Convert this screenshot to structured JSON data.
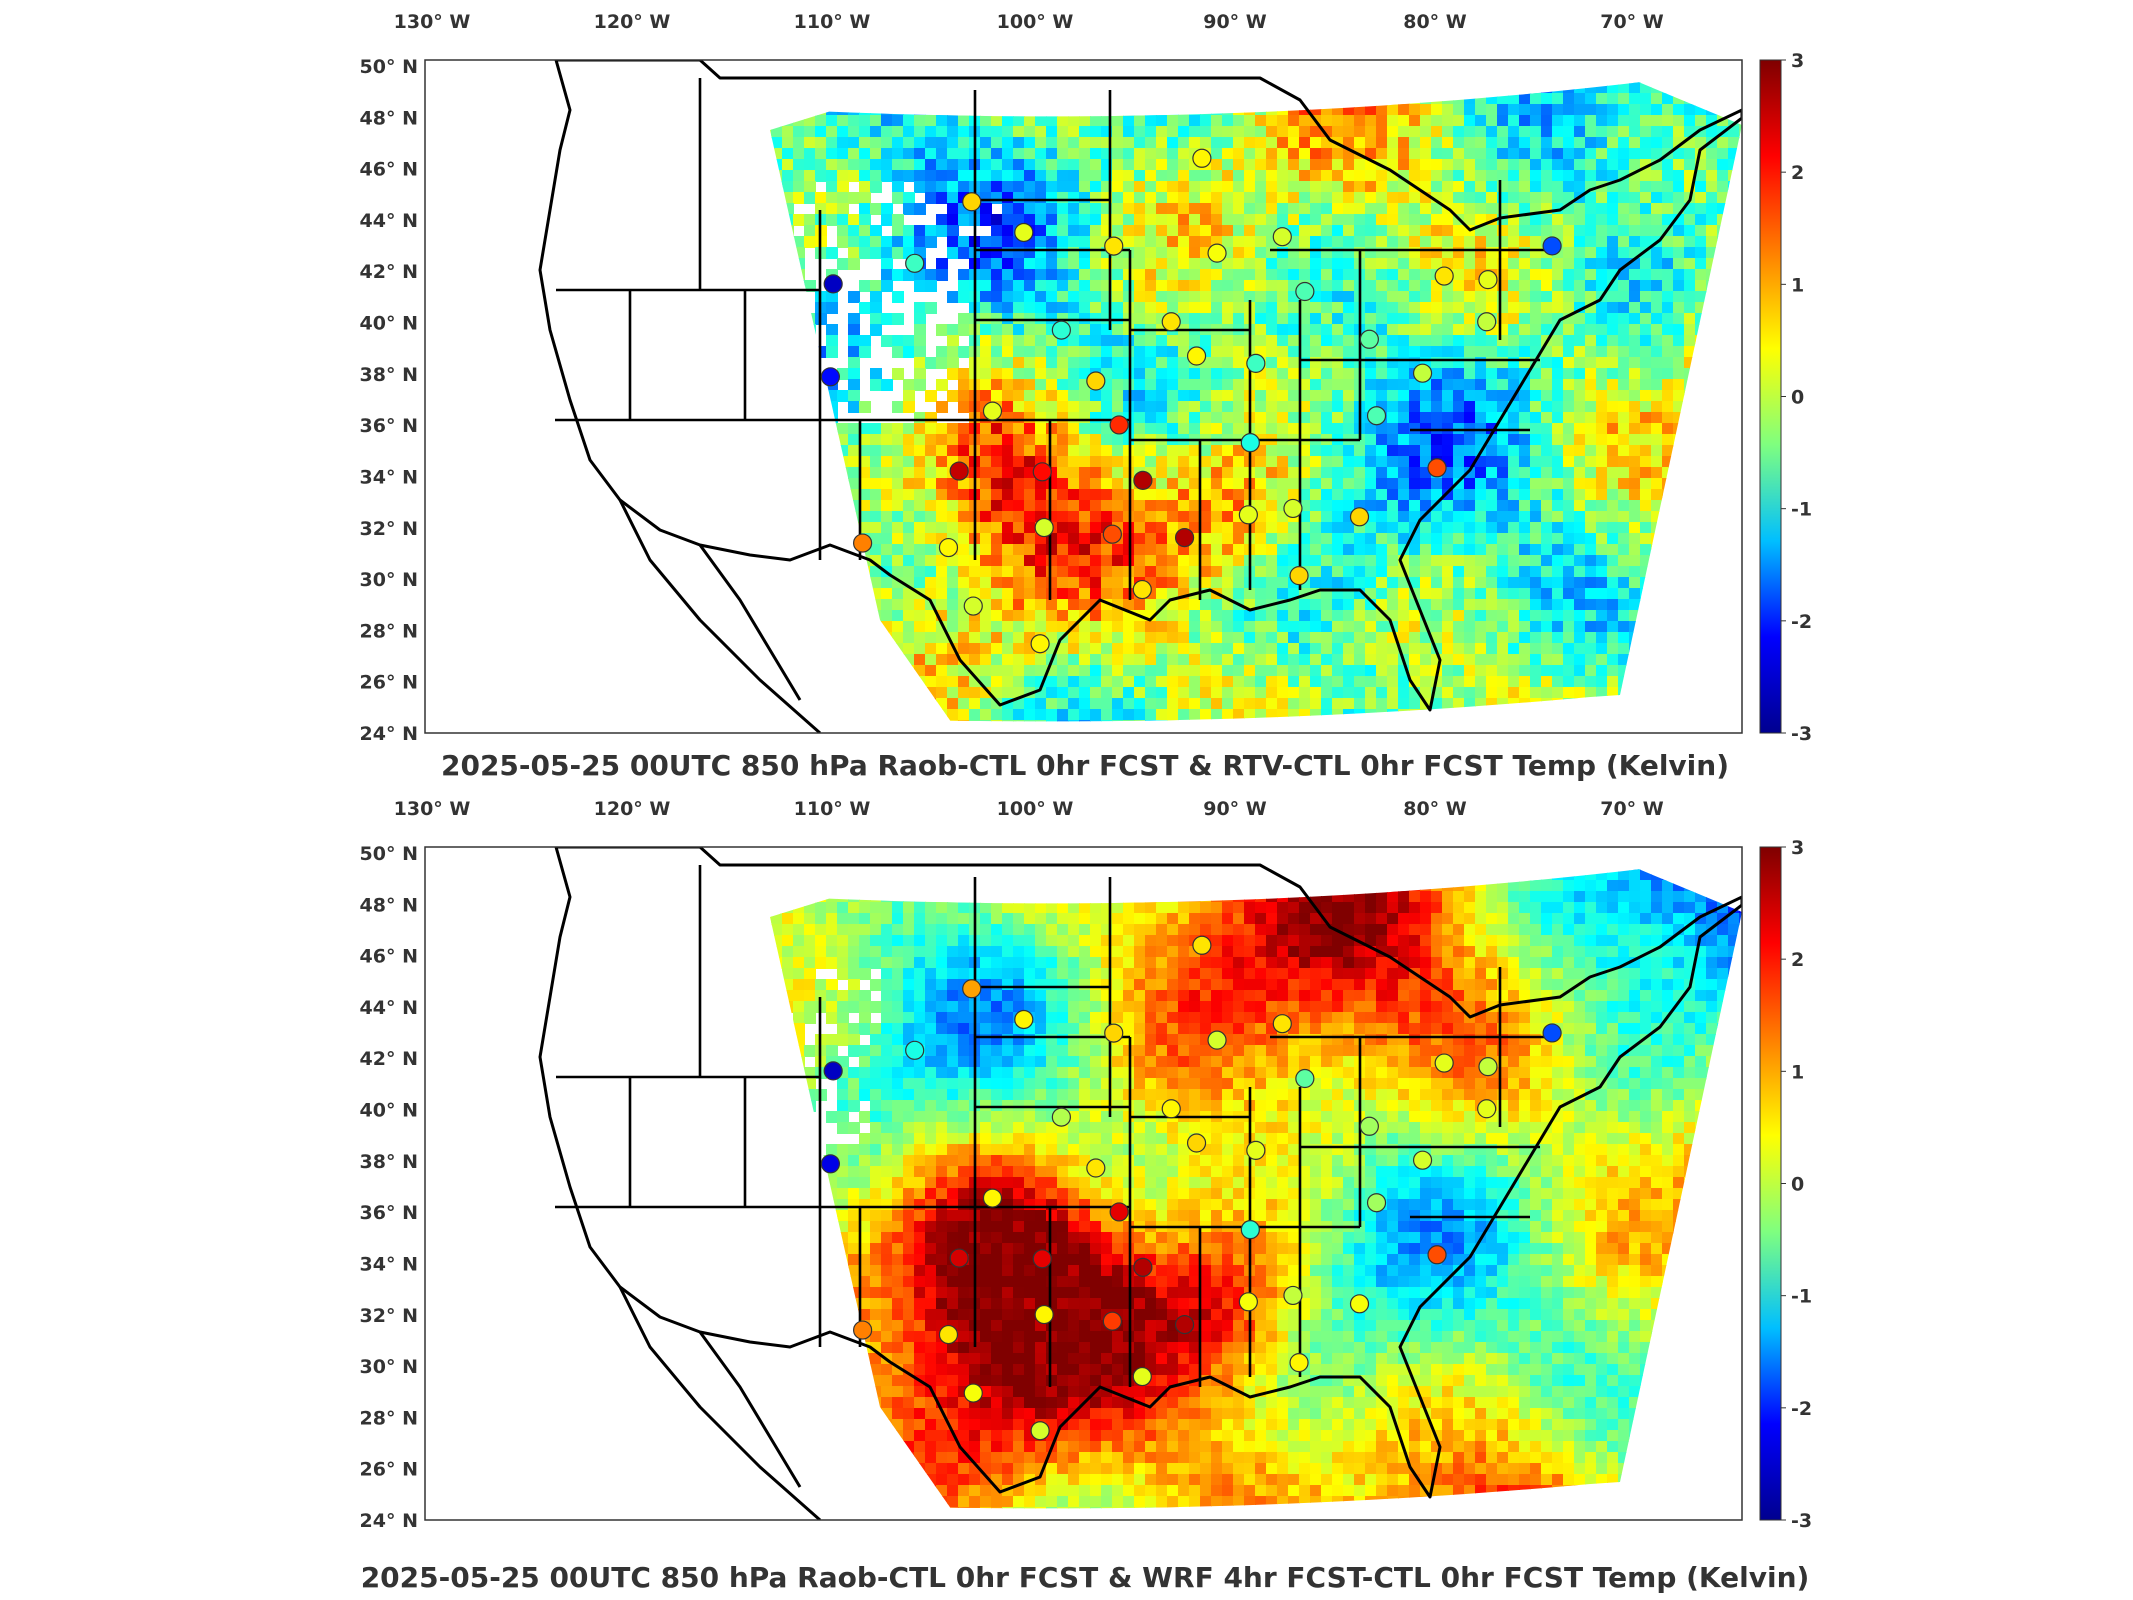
{
  "panels": [
    {
      "id": "top",
      "title": "2025-05-25 00UTC 850 hPa Raob-CTL 0hr FCST & RTV-CTL 0hr FCST Temp (Kelvin)"
    },
    {
      "id": "bottom",
      "title": "2025-05-25 00UTC 850 hPa Raob-CTL 0hr FCST & WRF 4hr FCST-CTL 0hr FCST Temp (Kelvin)"
    }
  ],
  "lon_ticks": [
    "130° W",
    "120° W",
    "110° W",
    "100° W",
    "90° W",
    "80° W",
    "70° W"
  ],
  "lat_ticks": [
    "50° N",
    "48° N",
    "46° N",
    "44° N",
    "42° N",
    "40° N",
    "38° N",
    "36° N",
    "34° N",
    "32° N",
    "30° N",
    "28° N",
    "26° N",
    "24° N"
  ],
  "colorbar": {
    "ticks": [
      "3",
      "2",
      "1",
      "0",
      "-1",
      "-2",
      "-3"
    ],
    "range": [
      -3,
      3
    ],
    "colormap": "jet",
    "colors": [
      "#00008f",
      "#0000ff",
      "#00bfff",
      "#7fff7f",
      "#ffff00",
      "#ff7f00",
      "#ff0000",
      "#7f0000"
    ]
  },
  "map": {
    "projection": "lambert-conformal",
    "region": "CONUS",
    "lon_range": [
      -130,
      -65
    ],
    "lat_range": [
      24,
      50
    ]
  },
  "stations": [
    {
      "lon": -88.8,
      "lat": 48.6,
      "top": 0.8,
      "bottom": 0.9
    },
    {
      "lon": -101.2,
      "lat": 46.8,
      "top": 1.0,
      "bottom": 1.3
    },
    {
      "lon": -98.4,
      "lat": 45.5,
      "top": 0.6,
      "bottom": 0.8
    },
    {
      "lon": -93.6,
      "lat": 44.9,
      "top": 0.9,
      "bottom": 1.0
    },
    {
      "lon": -88.1,
      "lat": 44.5,
      "top": 0.7,
      "bottom": 0.5
    },
    {
      "lon": -84.6,
      "lat": 45.1,
      "top": 0.5,
      "bottom": 0.9
    },
    {
      "lon": -104.2,
      "lat": 44.1,
      "top": -0.4,
      "bottom": -0.6
    },
    {
      "lon": -108.5,
      "lat": 43.1,
      "top": -2.6,
      "bottom": -2.6
    },
    {
      "lon": -83.5,
      "lat": 42.7,
      "top": -0.3,
      "bottom": -0.2
    },
    {
      "lon": -76.1,
      "lat": 43.0,
      "top": 0.9,
      "bottom": 0.6
    },
    {
      "lon": -73.8,
      "lat": 42.7,
      "top": 0.6,
      "bottom": 0.4
    },
    {
      "lon": -70.3,
      "lat": 43.9,
      "top": -1.8,
      "bottom": -1.8
    },
    {
      "lon": -96.4,
      "lat": 41.3,
      "top": -0.5,
      "bottom": 0.3
    },
    {
      "lon": -90.6,
      "lat": 41.6,
      "top": 0.9,
      "bottom": 0.8
    },
    {
      "lon": -89.3,
      "lat": 40.1,
      "top": 0.8,
      "bottom": 1.0
    },
    {
      "lon": -86.2,
      "lat": 39.7,
      "top": -0.4,
      "bottom": 0.6
    },
    {
      "lon": -80.2,
      "lat": 40.5,
      "top": -0.2,
      "bottom": 0.2
    },
    {
      "lon": -74.0,
      "lat": 40.9,
      "top": 0.4,
      "bottom": 0.6
    },
    {
      "lon": -108.5,
      "lat": 39.1,
      "top": -2.2,
      "bottom": -2.4
    },
    {
      "lon": -94.6,
      "lat": 39.1,
      "top": 1.0,
      "bottom": 0.9
    },
    {
      "lon": -77.5,
      "lat": 38.9,
      "top": 0.4,
      "bottom": 0.5
    },
    {
      "lon": -100.0,
      "lat": 37.8,
      "top": 0.6,
      "bottom": 0.8
    },
    {
      "lon": -93.4,
      "lat": 37.2,
      "top": 2.0,
      "bottom": 2.4
    },
    {
      "lon": -86.6,
      "lat": 36.3,
      "top": -0.6,
      "bottom": -0.5
    },
    {
      "lon": -80.0,
      "lat": 37.2,
      "top": -0.3,
      "bottom": 0.2
    },
    {
      "lon": -101.7,
      "lat": 35.2,
      "top": 2.6,
      "bottom": 2.5
    },
    {
      "lon": -97.4,
      "lat": 35.2,
      "top": 2.2,
      "bottom": 2.4
    },
    {
      "lon": -92.2,
      "lat": 34.8,
      "top": 2.7,
      "bottom": 2.7
    },
    {
      "lon": -77.0,
      "lat": 34.8,
      "top": 1.8,
      "bottom": 1.8
    },
    {
      "lon": -106.6,
      "lat": 32.0,
      "top": 1.5,
      "bottom": 1.5
    },
    {
      "lon": -102.2,
      "lat": 31.9,
      "top": 0.8,
      "bottom": 0.9
    },
    {
      "lon": -97.3,
      "lat": 32.8,
      "top": 0.5,
      "bottom": 0.8
    },
    {
      "lon": -93.8,
      "lat": 32.5,
      "top": 1.8,
      "bottom": 1.9
    },
    {
      "lon": -90.1,
      "lat": 32.3,
      "top": 2.7,
      "bottom": 2.7
    },
    {
      "lon": -86.8,
      "lat": 33.2,
      "top": 0.6,
      "bottom": 0.7
    },
    {
      "lon": -84.5,
      "lat": 33.4,
      "top": 0.5,
      "bottom": 0.4
    },
    {
      "lon": -81.1,
      "lat": 32.9,
      "top": 1.0,
      "bottom": 0.7
    },
    {
      "lon": -100.9,
      "lat": 29.4,
      "top": 0.5,
      "bottom": 0.7
    },
    {
      "lon": -97.5,
      "lat": 27.8,
      "top": 0.8,
      "bottom": 0.5
    },
    {
      "lon": -92.3,
      "lat": 30.1,
      "top": 0.9,
      "bottom": 0.6
    },
    {
      "lon": -84.3,
      "lat": 30.5,
      "top": 1.0,
      "bottom": 0.8
    }
  ]
}
